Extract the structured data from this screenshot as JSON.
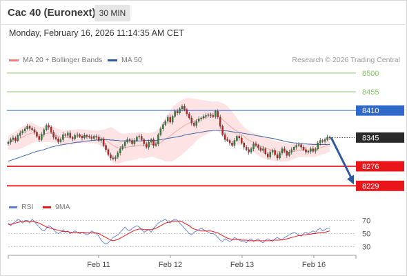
{
  "header": {
    "title": "Cac 40 (Euronext)",
    "timeframe": "30 MIN",
    "timestamp": "Monday, February 16, 2026 11:14:35 AM CET",
    "copyright": "Research © 2026 Trading Central"
  },
  "colors": {
    "bollinger": "#f08080",
    "ma50": "#2c5aa0",
    "target_green": "#8dc26f",
    "resistance_blue": "#2e68c8",
    "support_red": "#e8161b",
    "price_dark": "#2a2a2a",
    "rsi": "#5b7fd6",
    "rsi_ma": "#e8161b",
    "candle_up": "#2e8b3c",
    "candle_down": "#c8231f",
    "arrow": "#2c5aa0"
  },
  "chart_data": [
    {
      "type": "candlestick",
      "title": "Cac 40 (Euronext)",
      "timeframe": "30 MIN",
      "legend": [
        {
          "name": "MA 20 + Bollinger Bands",
          "color": "#f08080"
        },
        {
          "name": "MA 50",
          "color": "#2c5aa0"
        }
      ],
      "x_labels": [
        "Feb 11",
        "Feb 12",
        "Feb 13",
        "Feb 16"
      ],
      "ylim": [
        8208,
        8518
      ],
      "grid": false,
      "levels": [
        {
          "value": 8500,
          "label": "8500",
          "kind": "target"
        },
        {
          "value": 8455,
          "label": "8455",
          "kind": "target"
        },
        {
          "value": 8410,
          "label": "8410",
          "kind": "resistance"
        },
        {
          "value": 8345,
          "label": "8345",
          "kind": "last_price"
        },
        {
          "value": 8276,
          "label": "8276",
          "kind": "support"
        },
        {
          "value": 8229,
          "label": "8229",
          "kind": "support"
        }
      ],
      "forecast": {
        "from": 8345,
        "to": 8229
      },
      "close": [
        8334,
        8340,
        8344,
        8338,
        8350,
        8356,
        8361,
        8366,
        8372,
        8367,
        8364,
        8358,
        8348,
        8340,
        8352,
        8364,
        8374,
        8370,
        8358,
        8346,
        8342,
        8335,
        8340,
        8352,
        8350,
        8356,
        8345,
        8342,
        8350,
        8352,
        8348,
        8344,
        8350,
        8348,
        8346,
        8343,
        8348,
        8346,
        8338,
        8342,
        8326,
        8316,
        8304,
        8296,
        8294,
        8298,
        8308,
        8318,
        8325,
        8334,
        8340,
        8338,
        8330,
        8338,
        8346,
        8348,
        8340,
        8330,
        8322,
        8334,
        8340,
        8326,
        8330,
        8352,
        8366,
        8376,
        8384,
        8394,
        8382,
        8396,
        8408,
        8404,
        8414,
        8420,
        8412,
        8402,
        8392,
        8380,
        8374,
        8384,
        8390,
        8392,
        8396,
        8398,
        8400,
        8398,
        8396,
        8408,
        8394,
        8372,
        8352,
        8340,
        8338,
        8332,
        8326,
        8338,
        8348,
        8344,
        8332,
        8322,
        8316,
        8310,
        8318,
        8330,
        8326,
        8320,
        8314,
        8318,
        8306,
        8298,
        8310,
        8314,
        8304,
        8296,
        8308,
        8318,
        8312,
        8302,
        8310,
        8316,
        8322,
        8326,
        8328,
        8322,
        8316,
        8310,
        8312,
        8318,
        8312,
        8318,
        8332,
        8338,
        8336,
        8340,
        8346,
        8345
      ],
      "ma20": [
        8332,
        8334,
        8336,
        8338,
        8340,
        8343,
        8346,
        8349,
        8352,
        8354,
        8356,
        8356,
        8355,
        8353,
        8352,
        8353,
        8355,
        8356,
        8355,
        8353,
        8350,
        8348,
        8346,
        8345,
        8345,
        8346,
        8346,
        8346,
        8347,
        8348,
        8348,
        8348,
        8348,
        8348,
        8347,
        8347,
        8347,
        8346,
        8345,
        8344,
        8342,
        8339,
        8335,
        8330,
        8326,
        8323,
        8321,
        8320,
        8320,
        8321,
        8322,
        8323,
        8323,
        8324,
        8325,
        8327,
        8327,
        8326,
        8326,
        8327,
        8328,
        8328,
        8328,
        8330,
        8333,
        8337,
        8341,
        8345,
        8349,
        8353,
        8358,
        8362,
        8366,
        8370,
        8374,
        8377,
        8380,
        8382,
        8384,
        8387,
        8389,
        8391,
        8392,
        8393,
        8394,
        8395,
        8396,
        8397,
        8396,
        8393,
        8388,
        8383,
        8378,
        8373,
        8368,
        8364,
        8360,
        8356,
        8352,
        8348,
        8343,
        8339,
        8336,
        8333,
        8330,
        8327,
        8324,
        8322,
        8320,
        8318,
        8316,
        8315,
        8313,
        8312,
        8311,
        8311,
        8310,
        8310,
        8310,
        8311,
        8312,
        8313,
        8314,
        8314,
        8314,
        8314,
        8314,
        8315,
        8315,
        8316,
        8318,
        8320,
        8322,
        8324,
        8327,
        8329
      ],
      "bb_upper": [
        8350,
        8353,
        8356,
        8360,
        8364,
        8368,
        8372,
        8375,
        8378,
        8380,
        8380,
        8378,
        8375,
        8372,
        8370,
        8372,
        8376,
        8378,
        8376,
        8372,
        8368,
        8366,
        8364,
        8363,
        8362,
        8363,
        8364,
        8364,
        8364,
        8365,
        8365,
        8365,
        8364,
        8364,
        8363,
        8363,
        8362,
        8362,
        8362,
        8363,
        8364,
        8366,
        8368,
        8370,
        8368,
        8364,
        8360,
        8356,
        8354,
        8354,
        8355,
        8356,
        8356,
        8356,
        8357,
        8358,
        8358,
        8357,
        8356,
        8356,
        8357,
        8358,
        8360,
        8366,
        8374,
        8384,
        8394,
        8402,
        8410,
        8418,
        8424,
        8428,
        8432,
        8436,
        8438,
        8440,
        8440,
        8439,
        8438,
        8437,
        8436,
        8436,
        8435,
        8434,
        8433,
        8432,
        8431,
        8432,
        8432,
        8430,
        8428,
        8425,
        8420,
        8414,
        8408,
        8400,
        8392,
        8384,
        8376,
        8370,
        8366,
        8362,
        8358,
        8356,
        8354,
        8352,
        8350,
        8348,
        8346,
        8344,
        8342,
        8340,
        8338,
        8336,
        8335,
        8334,
        8333,
        8332,
        8331,
        8330,
        8330,
        8330,
        8330,
        8330,
        8330,
        8330,
        8330,
        8331,
        8332,
        8333,
        8335,
        8337,
        8339,
        8342,
        8345,
        8347
      ],
      "bb_lower": [
        8316,
        8316,
        8316,
        8316,
        8316,
        8318,
        8320,
        8323,
        8326,
        8328,
        8332,
        8334,
        8335,
        8334,
        8334,
        8334,
        8334,
        8334,
        8334,
        8334,
        8332,
        8330,
        8328,
        8327,
        8328,
        8329,
        8328,
        8328,
        8330,
        8331,
        8331,
        8331,
        8332,
        8332,
        8331,
        8331,
        8332,
        8330,
        8328,
        8325,
        8320,
        8312,
        8302,
        8290,
        8284,
        8282,
        8282,
        8284,
        8286,
        8288,
        8289,
        8290,
        8290,
        8292,
        8293,
        8296,
        8296,
        8295,
        8296,
        8298,
        8299,
        8298,
        8296,
        8294,
        8292,
        8290,
        8288,
        8288,
        8288,
        8288,
        8292,
        8296,
        8300,
        8304,
        8310,
        8314,
        8320,
        8325,
        8330,
        8337,
        8342,
        8346,
        8349,
        8352,
        8355,
        8358,
        8361,
        8362,
        8360,
        8356,
        8348,
        8341,
        8336,
        8332,
        8328,
        8328,
        8328,
        8328,
        8328,
        8326,
        8320,
        8316,
        8314,
        8310,
        8306,
        8302,
        8298,
        8296,
        8294,
        8292,
        8290,
        8290,
        8288,
        8288,
        8287,
        8288,
        8287,
        8288,
        8289,
        8292,
        8294,
        8296,
        8298,
        8298,
        8298,
        8298,
        8298,
        8299,
        8298,
        8299,
        8301,
        8303,
        8305,
        8306,
        8309,
        8311
      ],
      "ma50": [
        8288,
        8290,
        8292,
        8294,
        8296,
        8298,
        8300,
        8302,
        8304,
        8306,
        8308,
        8310,
        8312,
        8313,
        8315,
        8316,
        8318,
        8320,
        8322,
        8323,
        8325,
        8326,
        8327,
        8328,
        8329,
        8330,
        8331,
        8332,
        8333,
        8334,
        8334,
        8335,
        8336,
        8337,
        8337,
        8338,
        8338,
        8339,
        8339,
        8340,
        8340,
        8340,
        8340,
        8339,
        8339,
        8338,
        8338,
        8337,
        8337,
        8337,
        8337,
        8337,
        8337,
        8337,
        8337,
        8337,
        8337,
        8338,
        8338,
        8338,
        8338,
        8338,
        8338,
        8339,
        8340,
        8341,
        8342,
        8343,
        8344,
        8345,
        8346,
        8347,
        8348,
        8349,
        8351,
        8352,
        8353,
        8354,
        8355,
        8356,
        8357,
        8358,
        8359,
        8360,
        8361,
        8361,
        8362,
        8362,
        8362,
        8362,
        8362,
        8361,
        8361,
        8360,
        8359,
        8358,
        8358,
        8357,
        8356,
        8355,
        8354,
        8353,
        8352,
        8351,
        8350,
        8349,
        8348,
        8347,
        8346,
        8345,
        8344,
        8343,
        8342,
        8340,
        8339,
        8338,
        8336,
        8335,
        8334,
        8333,
        8332,
        8332,
        8331,
        8331,
        8330,
        8330,
        8329,
        8329,
        8328,
        8328,
        8328,
        8328,
        8328,
        8328,
        8328,
        8328
      ]
    },
    {
      "type": "line",
      "title": "RSI",
      "legend": [
        {
          "name": "RSI",
          "color": "#5b7fd6"
        },
        {
          "name": "9MA",
          "color": "#e8161b"
        }
      ],
      "y_ticks": [
        "70",
        "50",
        "30"
      ],
      "ylim": [
        20,
        80
      ],
      "rsi": [
        66,
        62,
        66,
        68,
        72,
        70,
        66,
        70,
        70,
        66,
        72,
        68,
        64,
        60,
        56,
        54,
        58,
        62,
        60,
        56,
        52,
        50,
        52,
        56,
        52,
        54,
        50,
        52,
        54,
        52,
        50,
        52,
        50,
        48,
        50,
        54,
        52,
        50,
        46,
        40,
        36,
        34,
        36,
        40,
        44,
        46,
        48,
        52,
        56,
        60,
        56,
        54,
        58,
        60,
        62,
        60,
        56,
        52,
        54,
        56,
        52,
        58,
        62,
        66,
        68,
        70,
        72,
        68,
        66,
        70,
        72,
        70,
        66,
        62,
        58,
        54,
        50,
        48,
        52,
        54,
        56,
        58,
        56,
        54,
        52,
        50,
        50,
        48,
        44,
        40,
        38,
        42,
        40,
        38,
        40,
        44,
        42,
        40,
        38,
        38,
        36,
        40,
        42,
        38,
        40,
        42,
        38,
        36,
        40,
        42,
        40,
        38,
        42,
        44,
        42,
        40,
        44,
        46,
        48,
        50,
        52,
        50,
        48,
        46,
        50,
        52,
        50,
        52,
        54,
        52,
        56,
        58,
        54,
        56,
        58,
        58
      ],
      "rsi_ma": [
        64,
        64,
        65,
        66,
        67,
        68,
        68,
        68,
        68,
        68,
        68,
        68,
        67,
        66,
        64,
        62,
        60,
        59,
        58,
        57,
        56,
        55,
        54,
        53,
        53,
        53,
        52,
        52,
        52,
        52,
        52,
        52,
        52,
        51,
        51,
        51,
        51,
        51,
        50,
        48,
        46,
        44,
        42,
        40,
        39,
        40,
        41,
        43,
        45,
        47,
        49,
        51,
        53,
        55,
        56,
        57,
        57,
        56,
        56,
        56,
        56,
        57,
        58,
        60,
        62,
        64,
        66,
        67,
        68,
        69,
        69,
        69,
        69,
        68,
        66,
        64,
        62,
        59,
        57,
        56,
        55,
        54,
        54,
        54,
        54,
        54,
        53,
        52,
        51,
        49,
        47,
        45,
        43,
        42,
        41,
        41,
        41,
        41,
        40,
        40,
        40,
        39,
        39,
        39,
        39,
        39,
        39,
        39,
        39,
        39,
        39,
        40,
        40,
        40,
        40,
        41,
        41,
        42,
        43,
        44,
        45,
        46,
        47,
        47,
        48,
        48,
        49,
        49,
        50,
        50,
        51,
        51,
        52,
        52,
        53,
        54
      ]
    }
  ]
}
